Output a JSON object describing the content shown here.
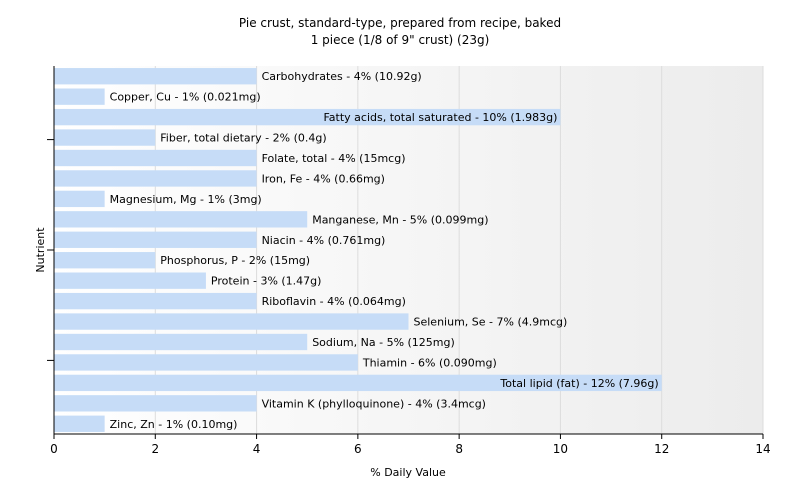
{
  "chart_data": {
    "type": "bar",
    "orientation": "horizontal",
    "title": "Pie crust, standard-type, prepared from recipe, baked",
    "subtitle": "1 piece (1/8 of 9\" crust) (23g)",
    "xlabel": "% Daily Value",
    "ylabel": "Nutrient",
    "xlim": [
      0,
      14
    ],
    "xticks": [
      "0",
      "2",
      "4",
      "6",
      "8",
      "10",
      "12",
      "14"
    ],
    "grid": true,
    "bar_color": "#c6dcf7",
    "categories": [
      "Carbohydrates",
      "Copper, Cu",
      "Fatty acids, total saturated",
      "Fiber, total dietary",
      "Folate, total",
      "Iron, Fe",
      "Magnesium, Mg",
      "Manganese, Mn",
      "Niacin",
      "Phosphorus, P",
      "Protein",
      "Riboflavin",
      "Selenium, Se",
      "Sodium, Na",
      "Thiamin",
      "Total lipid (fat)",
      "Vitamin K (phylloquinone)",
      "Zinc, Zn"
    ],
    "values": [
      4,
      1,
      10,
      2,
      4,
      4,
      1,
      5,
      4,
      2,
      3,
      4,
      7,
      5,
      6,
      12,
      4,
      1
    ],
    "labels": [
      "Carbohydrates - 4% (10.92g)",
      "Copper, Cu - 1% (0.021mg)",
      "Fatty acids, total saturated - 10% (1.983g)",
      "Fiber, total dietary - 2% (0.4g)",
      "Folate, total - 4% (15mcg)",
      "Iron, Fe - 4% (0.66mg)",
      "Magnesium, Mg - 1% (3mg)",
      "Manganese, Mn - 5% (0.099mg)",
      "Niacin - 4% (0.761mg)",
      "Phosphorus, P - 2% (15mg)",
      "Protein - 3% (1.47g)",
      "Riboflavin - 4% (0.064mg)",
      "Selenium, Se - 7% (4.9mcg)",
      "Sodium, Na - 5% (125mg)",
      "Thiamin - 6% (0.090mg)",
      "Total lipid (fat) - 12% (7.96g)",
      "Vitamin K (phylloquinone) - 4% (3.4mcg)",
      "Zinc, Zn - 1% (0.10mg)"
    ]
  }
}
